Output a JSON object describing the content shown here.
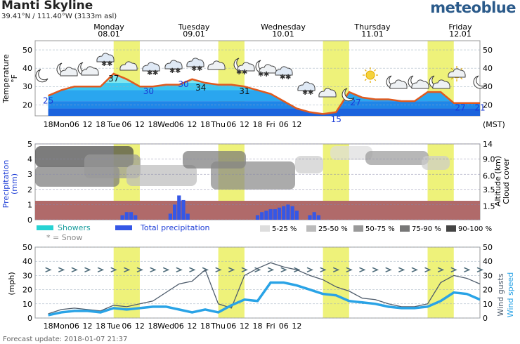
{
  "header": {
    "title": "Manti Skyline",
    "coords": "39.41°N / 111.40°W (3133m asl)",
    "brand": "meteoblue"
  },
  "footer": {
    "text": "Forecast update: 2018-01-07 21:37"
  },
  "colors": {
    "highlight": "#eef27a",
    "temp_line": "#e05a1e",
    "precip": "#3557e6",
    "showers": "#27d3d3",
    "wind_speed": "#29a3e6",
    "wind_gusts": "#4d5b6b",
    "precip_band": "#b06a6a"
  },
  "x_ticks": [
    "18",
    "Mon",
    "06",
    "12",
    "18",
    "Tue",
    "06",
    "12",
    "18",
    "Wed",
    "06",
    "12",
    "18",
    "Thu",
    "06",
    "12",
    "18",
    "Fri",
    "06",
    "12"
  ],
  "x_unit": "(MST)",
  "days": [
    {
      "name": "Monday",
      "date": "08.01"
    },
    {
      "name": "Tuesday",
      "date": "09.01"
    },
    {
      "name": "Wednesday",
      "date": "10.01"
    },
    {
      "name": "Thursday",
      "date": "11.01"
    },
    {
      "name": "Friday",
      "date": "12.01"
    }
  ],
  "icons": [
    "moon",
    "moon-cloud",
    "moon-cloud",
    "snow-cloud",
    "cloud",
    "snow-cloud",
    "snow-cloud",
    "snow-cloud",
    "cloud",
    "moon-snow",
    "moon-snow",
    "snow-cloud",
    "snow-cloud",
    "cloud",
    "moon",
    "sun",
    "moon-cloud",
    "moon-cloud",
    "moon-cloud",
    "sun-cloud",
    "moon"
  ],
  "legend": {
    "showers": "Showers",
    "total": "Total precipitation",
    "snow": "* = Snow",
    "cloud": [
      "5-25 %",
      "25-50 %",
      "50-75 %",
      "75-90 %",
      "90-100 %"
    ]
  },
  "chart_data": [
    {
      "type": "area",
      "ylabel": "Temperature\n°F",
      "ylim": [
        14,
        55
      ],
      "yticks": [
        20,
        30,
        40,
        50
      ],
      "x_hours": [
        0,
        6,
        12,
        18,
        24,
        30,
        36,
        42,
        48,
        54,
        60,
        66,
        72,
        78,
        84,
        90,
        96,
        102,
        108,
        114,
        120,
        126,
        132,
        138,
        144,
        150,
        156,
        162,
        168,
        174,
        180,
        186,
        198
      ],
      "temperature": [
        25,
        28,
        30,
        30,
        30,
        37,
        34,
        30,
        30,
        31,
        31,
        34,
        32,
        31,
        31,
        30,
        28,
        26,
        22,
        18,
        16,
        15,
        16,
        27,
        24,
        23,
        23,
        22,
        22,
        27,
        27,
        21,
        21
      ],
      "annotations": [
        {
          "label": "25",
          "hour": 0
        },
        {
          "label": "37",
          "hour": 30
        },
        {
          "label": "30",
          "hour": 46
        },
        {
          "label": "30",
          "hour": 62
        },
        {
          "label": "34",
          "hour": 70
        },
        {
          "label": "31",
          "hour": 90
        },
        {
          "label": "15",
          "hour": 132
        },
        {
          "label": "27",
          "hour": 141
        },
        {
          "label": "27",
          "hour": 189
        },
        {
          "label": "21",
          "hour": 198
        }
      ]
    },
    {
      "type": "bar",
      "ylabel": "Precipitation\n(mm)",
      "y2label": "Altitude (km)  Cloud cover",
      "ylim": [
        0,
        5
      ],
      "yticks": [
        0,
        1,
        2,
        3,
        4,
        5
      ],
      "y2ticks": [
        "1.5",
        "3.5",
        "6.0",
        "9.0",
        "14"
      ],
      "precip_hours": [
        34,
        36,
        38,
        40,
        56,
        58,
        60,
        62,
        64,
        96,
        98,
        100,
        102,
        104,
        106,
        108,
        110,
        112,
        114,
        120,
        122,
        124
      ],
      "precip_values": [
        0.3,
        0.5,
        0.5,
        0.3,
        0.4,
        1.0,
        1.6,
        1.3,
        0.4,
        0.3,
        0.5,
        0.6,
        0.7,
        0.7,
        0.8,
        0.9,
        1.0,
        0.9,
        0.6,
        0.3,
        0.5,
        0.3
      ]
    },
    {
      "type": "line",
      "ylabel": "(mph)",
      "y2label": "Wind gusts  Wind speed",
      "ylim": [
        0,
        50
      ],
      "yticks": [
        0,
        10,
        20,
        30,
        40,
        50
      ],
      "x_hours": [
        0,
        6,
        12,
        18,
        24,
        30,
        36,
        42,
        48,
        54,
        60,
        66,
        72,
        78,
        84,
        90,
        96,
        102,
        108,
        114,
        120,
        126,
        132,
        138,
        144,
        150,
        156,
        162,
        168,
        174,
        180,
        186,
        192,
        198
      ],
      "wind_speed": [
        2,
        4,
        5,
        5,
        4,
        7,
        6,
        7,
        8,
        8,
        6,
        4,
        6,
        4,
        9,
        13,
        12,
        25,
        25,
        23,
        20,
        17,
        16,
        12,
        11,
        10,
        8,
        7,
        7,
        8,
        12,
        18,
        17,
        13
      ],
      "wind_gusts": [
        3,
        6,
        7,
        6,
        5,
        9,
        8,
        10,
        12,
        18,
        24,
        26,
        34,
        10,
        7,
        30,
        35,
        39,
        36,
        34,
        30,
        27,
        22,
        19,
        14,
        13,
        10,
        8,
        8,
        10,
        25,
        30,
        28,
        24
      ]
    }
  ]
}
